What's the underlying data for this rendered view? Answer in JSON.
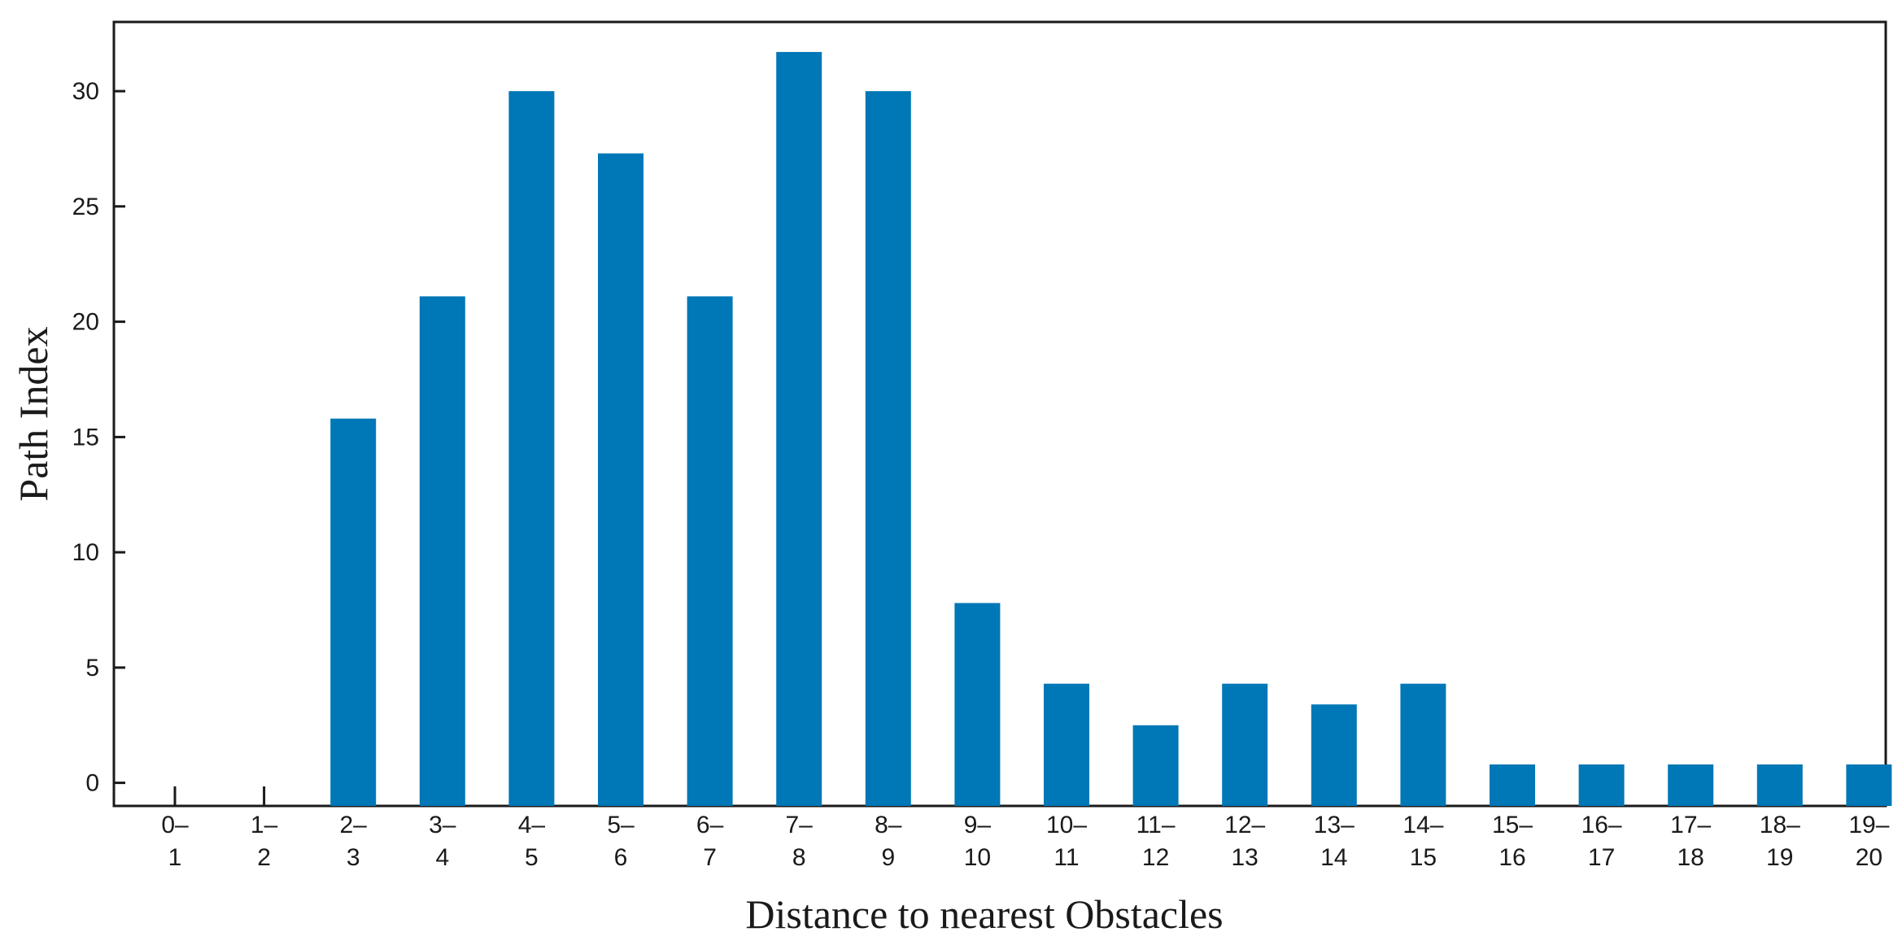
{
  "chart_data": {
    "type": "bar",
    "title": "",
    "xlabel": "Distance to nearest Obstacles",
    "ylabel": "Path Index",
    "categories": [
      [
        "0–",
        "1"
      ],
      [
        "1–",
        "2"
      ],
      [
        "2–",
        "3"
      ],
      [
        "3–",
        "4"
      ],
      [
        "4–",
        "5"
      ],
      [
        "5–",
        "6"
      ],
      [
        "6–",
        "7"
      ],
      [
        "7–",
        "8"
      ],
      [
        "8–",
        "9"
      ],
      [
        "9–",
        "10"
      ],
      [
        "10–",
        "11"
      ],
      [
        "11–",
        "12"
      ],
      [
        "12–",
        "13"
      ],
      [
        "13–",
        "14"
      ],
      [
        "14–",
        "15"
      ],
      [
        "15–",
        "16"
      ],
      [
        "16–",
        "17"
      ],
      [
        "17–",
        "18"
      ],
      [
        "18–",
        "19"
      ],
      [
        "19–",
        "20"
      ]
    ],
    "values": [
      0,
      0,
      15.8,
      21.1,
      30.0,
      27.3,
      21.1,
      31.7,
      30.0,
      7.8,
      4.3,
      2.5,
      4.3,
      3.4,
      4.3,
      0.8,
      0.8,
      0.8,
      0.8,
      0.8
    ],
    "ylim": [
      -1,
      33
    ],
    "yticks": [
      0,
      5,
      10,
      15,
      20,
      25,
      30
    ],
    "grid": false,
    "bar_color": "#0077b6"
  }
}
